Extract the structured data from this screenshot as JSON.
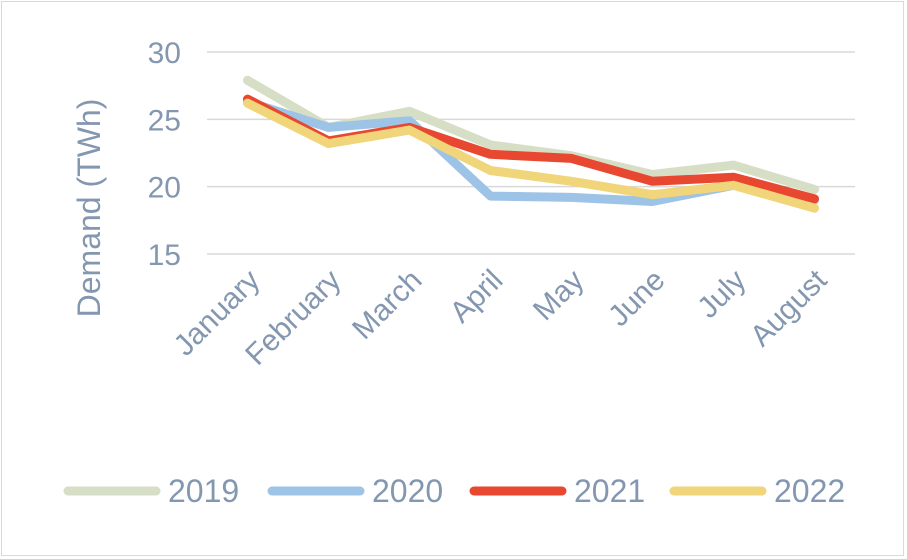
{
  "chart_data": {
    "type": "line",
    "title": "",
    "xlabel": "",
    "ylabel": "Demand (TWh)",
    "ylim": [
      15,
      30
    ],
    "yticks": [
      15,
      20,
      25,
      30
    ],
    "categories": [
      "January",
      "February",
      "March",
      "April",
      "May",
      "June",
      "July",
      "August"
    ],
    "grid": true,
    "legend_position": "bottom",
    "series": [
      {
        "name": "2019",
        "color": "#d6dfc6",
        "values": [
          27.9,
          24.4,
          25.6,
          23.1,
          22.3,
          20.9,
          21.6,
          19.8
        ]
      },
      {
        "name": "2020",
        "color": "#9dc3e6",
        "values": [
          26.3,
          24.4,
          24.9,
          19.3,
          19.2,
          18.9,
          20.1,
          19.0
        ]
      },
      {
        "name": "2021",
        "color": "#e7482f",
        "values": [
          26.5,
          23.4,
          24.4,
          22.4,
          22.1,
          20.4,
          20.7,
          19.1
        ]
      },
      {
        "name": "2022",
        "color": "#f0d57a",
        "values": [
          26.2,
          23.2,
          24.2,
          21.2,
          20.4,
          19.4,
          20.1,
          18.4
        ]
      }
    ]
  }
}
